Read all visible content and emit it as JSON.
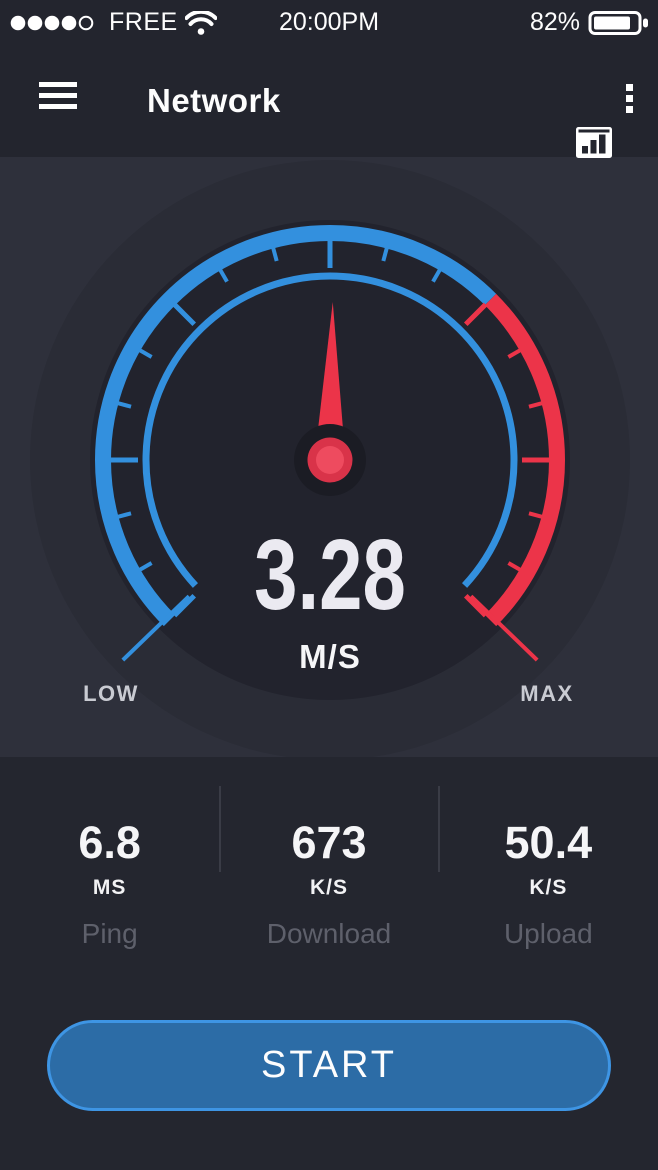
{
  "status_bar": {
    "signal_filled_dots": 4,
    "signal_total_dots": 5,
    "carrier": "FREE",
    "time": "20:00PM",
    "battery_percent": "82%",
    "battery_level": 0.82
  },
  "header": {
    "title": "Network"
  },
  "gauge": {
    "value": "3.28",
    "unit": "M/S",
    "low_label": "LOW",
    "max_label": "MAX",
    "arc": {
      "start_angle": -135,
      "end_angle": 135,
      "red_start_angle": 45,
      "minor_tick_step": 15,
      "major_tick_step": 45
    },
    "needle_angle": 1,
    "colors": {
      "blue": "#3390de",
      "red": "#ec3449",
      "dial": "#22232d",
      "dial_shadow": "#2a2c36",
      "hub_outer": "#1b1c24",
      "hub_ring": "#d93349",
      "hub_center": "#ee4b5f"
    }
  },
  "stats": {
    "items": [
      {
        "value": "6.8",
        "unit": "MS",
        "label": "Ping"
      },
      {
        "value": "673",
        "unit": "K/S",
        "label": "Download"
      },
      {
        "value": "50.4",
        "unit": "K/S",
        "label": "Upload"
      }
    ]
  },
  "actions": {
    "start_label": "START"
  },
  "theme": {
    "top_bar_bg": "#23252e",
    "gauge_section_bg": "#2e303b",
    "bottom_section_bg": "#24262f",
    "button_fill": "#2c6ca6",
    "button_border": "#3e95e4",
    "muted_label": "#5e606b"
  }
}
